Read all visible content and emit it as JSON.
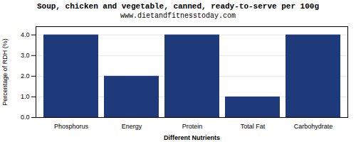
{
  "chart_data": {
    "type": "bar",
    "title": "Soup, chicken and vegetable, canned, ready-to-serve per 100g",
    "subtitle": "www.dietandfitnesstoday.com",
    "categories": [
      "Phosphorus",
      "Energy",
      "Protein",
      "Total Fat",
      "Carbohydrate"
    ],
    "values": [
      4.0,
      2.0,
      4.0,
      1.0,
      4.0
    ],
    "color": "#1F3A7A",
    "xlabel": "Different Nutrients",
    "ylabel": "Percentage of RDH (%)",
    "ylim": [
      0,
      4.4
    ],
    "yticks": [
      {
        "value": 0,
        "label": "0.0"
      },
      {
        "value": 1,
        "label": "1.0"
      },
      {
        "value": 2,
        "label": "2.0"
      },
      {
        "value": 3,
        "label": "3.0"
      },
      {
        "value": 4,
        "label": "4.0"
      }
    ],
    "grid": true
  }
}
